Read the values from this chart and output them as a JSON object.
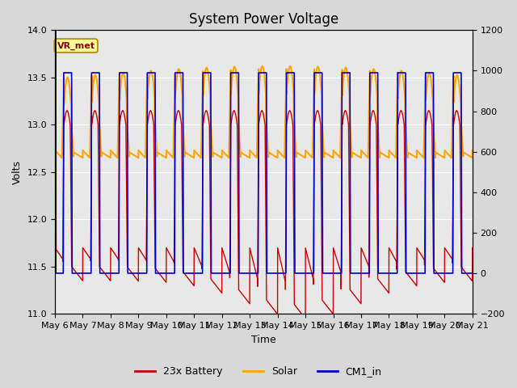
{
  "title": "System Power Voltage",
  "xlabel": "Time",
  "ylabel": "Volts",
  "ylim_left": [
    11.0,
    14.0
  ],
  "ylim_right": [
    -200,
    1200
  ],
  "yticks_left": [
    11.0,
    11.5,
    12.0,
    12.5,
    13.0,
    13.5,
    14.0
  ],
  "yticks_right": [
    -200,
    0,
    200,
    400,
    600,
    800,
    1000,
    1200
  ],
  "xtick_labels": [
    "May 6",
    "May 7",
    "May 8",
    "May 9",
    "May 10",
    "May 11",
    "May 12",
    "May 13",
    "May 14",
    "May 15",
    "May 16",
    "May 17",
    "May 18",
    "May 19",
    "May 20",
    "May 21"
  ],
  "color_battery": "#cc0000",
  "color_solar": "#ffa500",
  "color_cm1": "#0000cc",
  "annotation_text": "VR_met",
  "annotation_color": "#8b0000",
  "annotation_bg": "#ffff99",
  "legend_labels": [
    "23x Battery",
    "Solar",
    "CM1_in"
  ],
  "outer_bg": "#d8d8d8",
  "plot_bg": "#e8e8e8",
  "title_fontsize": 12,
  "axis_fontsize": 9,
  "tick_fontsize": 8
}
